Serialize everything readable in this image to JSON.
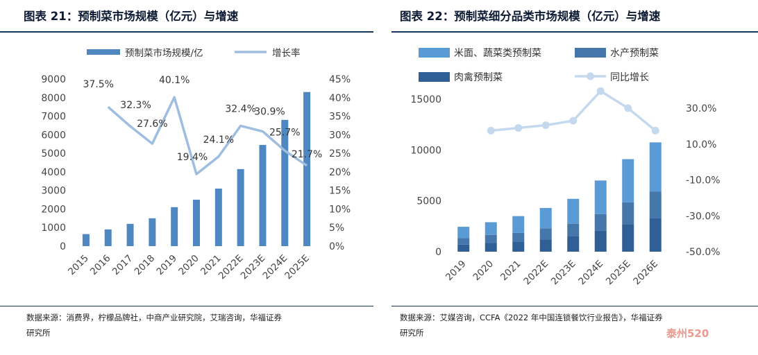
{
  "left_panel": {
    "title": "图表 21：预制菜市场规模（亿元）与增速",
    "source_lines": [
      "数据来源：消费界，柠檬品牌社，中商产业研究院，艾瑞咨询，华福证券",
      "研究所"
    ]
  },
  "right_panel": {
    "title": "图表 22：预制菜细分品类市场规模（亿元）与增速",
    "source_lines": [
      "数据来源：艾媒咨询，CCFA《2022 年中国连锁餐饮行业报告》，华福证券",
      "研究所"
    ]
  },
  "watermark": "泰州520",
  "colors": {
    "bar_main": "#4f87c0",
    "growth_line": "#9ebde0",
    "seg_rice_veg": "#5b9bd5",
    "seg_aquatic": "#4577aa",
    "seg_meat": "#2f5f94",
    "yoy_line": "#c5d9ee",
    "rule": "#17365d"
  },
  "chart_data": [
    {
      "type": "bar+line",
      "title": "图表 21：预制菜市场规模（亿元）与增速",
      "categories": [
        "2015",
        "2016",
        "2017",
        "2018",
        "2019",
        "2020",
        "2021",
        "2022E",
        "2023E",
        "2024E",
        "2025E"
      ],
      "series": [
        {
          "name": "预制菜市场规模/亿",
          "type": "bar",
          "axis": "left",
          "values": [
            650,
            900,
            1200,
            1500,
            2100,
            2500,
            3100,
            4150,
            5450,
            6800,
            8300
          ]
        },
        {
          "name": "增长率",
          "type": "line",
          "axis": "right",
          "values": [
            null,
            37.5,
            32.3,
            27.6,
            40.1,
            19.4,
            24.1,
            32.4,
            30.9,
            25.7,
            21.7
          ]
        }
      ],
      "growth_labels": [
        "37.5%",
        "32.3%",
        "27.6%",
        "40.1%",
        "19.4%",
        "24.1%",
        "32.4%",
        "30.9%",
        "25.7%",
        "21.7%"
      ],
      "y_left": {
        "range": [
          0,
          9000
        ],
        "ticks": [
          "0",
          "1000",
          "2000",
          "3000",
          "4000",
          "5000",
          "6000",
          "7000",
          "8000",
          "9000"
        ]
      },
      "y_right": {
        "range": [
          0,
          45
        ],
        "ticks": [
          "0%",
          "5%",
          "10%",
          "15%",
          "20%",
          "25%",
          "30%",
          "35%",
          "40%",
          "45%"
        ]
      },
      "legend": [
        "预制菜市场规模/亿",
        "增长率"
      ],
      "legend_position": "top"
    },
    {
      "type": "stacked-bar+line",
      "title": "图表 22：预制菜细分品类市场规模（亿元）与增速",
      "categories": [
        "2019",
        "2020",
        "2021",
        "2022E",
        "2023E",
        "2024E",
        "2025E",
        "2026E"
      ],
      "series": [
        {
          "name": "肉禽预制菜",
          "type": "bar",
          "stack": "total",
          "axis": "left",
          "values": [
            700,
            850,
            1000,
            1200,
            1500,
            2050,
            2700,
            3300
          ]
        },
        {
          "name": "水产预制菜",
          "type": "bar",
          "stack": "total",
          "axis": "left",
          "values": [
            650,
            800,
            850,
            1100,
            1250,
            1650,
            2150,
            2600
          ]
        },
        {
          "name": "米面、蔬菜类预制菜",
          "type": "bar",
          "stack": "total",
          "axis": "left",
          "values": [
            1100,
            1250,
            1650,
            2000,
            2450,
            3300,
            4250,
            4850
          ]
        },
        {
          "name": "同比增长",
          "type": "line",
          "axis": "right",
          "values": [
            null,
            17.5,
            19.0,
            20.5,
            23.0,
            39.5,
            30.0,
            17.5
          ]
        }
      ],
      "y_left": {
        "range": [
          0,
          15000
        ],
        "ticks": [
          "0",
          "5000",
          "10000",
          "15000"
        ]
      },
      "y_right": {
        "range": [
          -50,
          30
        ],
        "ticks": [
          "-50.0%",
          "-30.0%",
          "-10.0%",
          "10.0%",
          "30.0%"
        ]
      },
      "legend": [
        "米面、蔬菜类预制菜",
        "水产预制菜",
        "肉禽预制菜",
        "同比增长"
      ],
      "legend_position": "top"
    }
  ]
}
